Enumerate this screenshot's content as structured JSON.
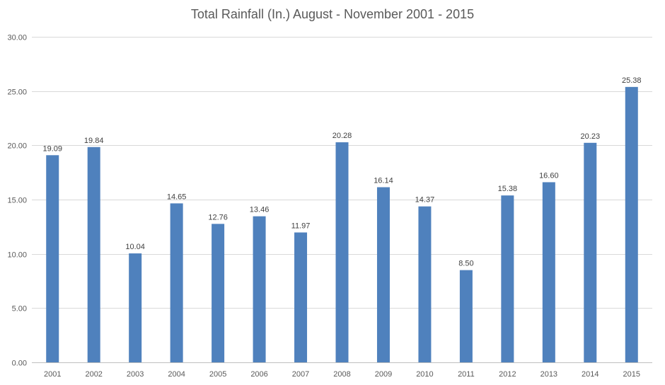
{
  "chart_data": {
    "type": "bar",
    "title": "Total Rainfall (In.) August - November 2001 - 2015",
    "xlabel": "",
    "ylabel": "",
    "categories": [
      "2001",
      "2002",
      "2003",
      "2004",
      "2005",
      "2006",
      "2007",
      "2008",
      "2009",
      "2010",
      "2011",
      "2012",
      "2013",
      "2014",
      "2015"
    ],
    "values": [
      19.09,
      19.84,
      10.04,
      14.65,
      12.76,
      13.46,
      11.97,
      20.28,
      16.14,
      14.37,
      8.5,
      15.38,
      16.6,
      20.23,
      25.38
    ],
    "data_labels": [
      "19.09",
      "19.84",
      "10.04",
      "14.65",
      "12.76",
      "13.46",
      "11.97",
      "20.28",
      "16.14",
      "14.37",
      "8.50",
      "15.38",
      "16.60",
      "20.23",
      "25.38"
    ],
    "ylim": [
      0,
      30
    ],
    "yticks": [
      "0.00",
      "5.00",
      "10.00",
      "15.00",
      "20.00",
      "25.00",
      "30.00"
    ],
    "ytick_values": [
      0,
      5,
      10,
      15,
      20,
      25,
      30
    ],
    "grid": true,
    "legend": "none",
    "bar_color": "#4f81bd"
  }
}
